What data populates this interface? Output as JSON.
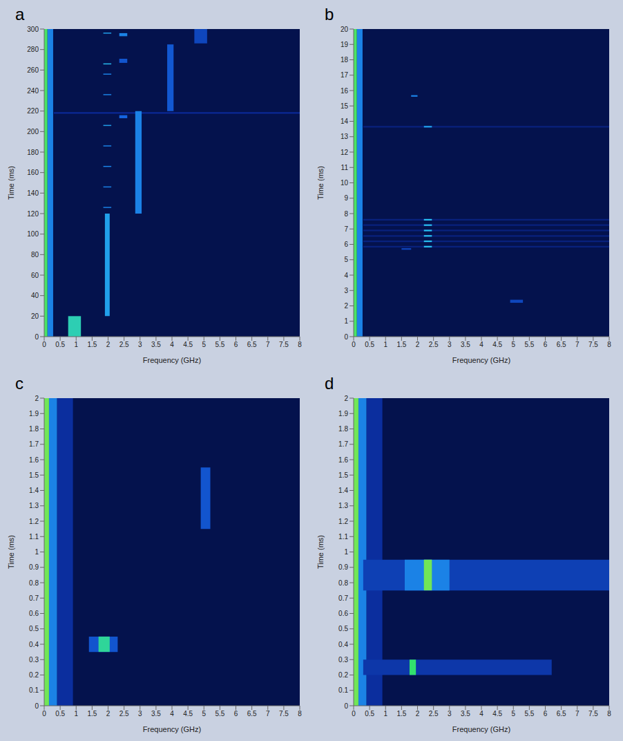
{
  "chart_data": [
    {
      "type": "heatmap",
      "panel": "a",
      "x_label": "Frequency (GHz)",
      "y_label": "Time (ms)",
      "grid": false,
      "xlim": [
        0,
        8
      ],
      "ylim": [
        0,
        300
      ],
      "xticks": [
        0,
        0.5,
        1,
        1.5,
        2,
        2.5,
        3,
        3.5,
        4,
        4.5,
        5,
        5.5,
        6,
        6.5,
        7,
        7.5,
        8
      ],
      "yticks": [
        0,
        20,
        40,
        60,
        80,
        100,
        120,
        140,
        160,
        180,
        200,
        220,
        240,
        260,
        280,
        300
      ],
      "cells": [
        {
          "x": [
            0.1,
            0.28
          ],
          "y": [
            0,
            300
          ],
          "value": 0.45
        },
        {
          "x": [
            0,
            0.1
          ],
          "y": [
            0,
            300
          ],
          "value": 0.72
        },
        {
          "x": [
            0.3,
            8
          ],
          "y": [
            217.5,
            219
          ],
          "value": 0.2
        },
        {
          "x": [
            0.75,
            1.15
          ],
          "y": [
            0,
            20
          ],
          "value": 0.62
        },
        {
          "x": [
            1.9,
            2.05
          ],
          "y": [
            20,
            120
          ],
          "value": 0.5
        },
        {
          "x": [
            2.85,
            3.05
          ],
          "y": [
            120,
            220
          ],
          "value": 0.45
        },
        {
          "x": [
            3.85,
            4.05
          ],
          "y": [
            220,
            285
          ],
          "value": 0.36
        },
        {
          "x": [
            4.7,
            5.1
          ],
          "y": [
            286,
            300
          ],
          "value": 0.3
        },
        {
          "x": [
            1.85,
            2.1
          ],
          "y": [
            125.5,
            126.5
          ],
          "value": 0.45
        },
        {
          "x": [
            1.85,
            2.1
          ],
          "y": [
            145.5,
            146.5
          ],
          "value": 0.45
        },
        {
          "x": [
            1.85,
            2.1
          ],
          "y": [
            165.5,
            166.5
          ],
          "value": 0.45
        },
        {
          "x": [
            1.85,
            2.1
          ],
          "y": [
            185.5,
            186.5
          ],
          "value": 0.45
        },
        {
          "x": [
            1.85,
            2.1
          ],
          "y": [
            205.5,
            206.5
          ],
          "value": 0.5
        },
        {
          "x": [
            1.85,
            2.1
          ],
          "y": [
            235.5,
            236.5
          ],
          "value": 0.45
        },
        {
          "x": [
            1.85,
            2.1
          ],
          "y": [
            255.5,
            256.5
          ],
          "value": 0.45
        },
        {
          "x": [
            1.85,
            2.1
          ],
          "y": [
            265.5,
            266.5
          ],
          "value": 0.55
        },
        {
          "x": [
            1.85,
            2.1
          ],
          "y": [
            295.5,
            296.5
          ],
          "value": 0.5
        },
        {
          "x": [
            2.35,
            2.6
          ],
          "y": [
            213,
            216
          ],
          "value": 0.4
        },
        {
          "x": [
            2.35,
            2.6
          ],
          "y": [
            267,
            271
          ],
          "value": 0.35
        },
        {
          "x": [
            2.35,
            2.6
          ],
          "y": [
            293,
            296
          ],
          "value": 0.45
        }
      ]
    },
    {
      "type": "heatmap",
      "panel": "b",
      "x_label": "Frequency (GHz)",
      "y_label": "Time (ms)",
      "grid": false,
      "xlim": [
        0,
        8
      ],
      "ylim": [
        0,
        20
      ],
      "xticks": [
        0,
        0.5,
        1,
        1.5,
        2,
        2.5,
        3,
        3.5,
        4,
        4.5,
        5,
        5.5,
        6,
        6.5,
        7,
        7.5,
        8
      ],
      "yticks": [
        0,
        1,
        2,
        3,
        4,
        5,
        6,
        7,
        8,
        9,
        10,
        11,
        12,
        13,
        14,
        15,
        16,
        17,
        18,
        19,
        20
      ],
      "cells": [
        {
          "x": [
            0.1,
            0.28
          ],
          "y": [
            0,
            20
          ],
          "value": 0.45
        },
        {
          "x": [
            0,
            0.1
          ],
          "y": [
            0,
            20
          ],
          "value": 0.72
        },
        {
          "x": [
            4.9,
            5.3
          ],
          "y": [
            2.2,
            2.4
          ],
          "value": 0.3
        },
        {
          "x": [
            1.5,
            1.8
          ],
          "y": [
            5.65,
            5.75
          ],
          "value": 0.3
        },
        {
          "x": [
            0.3,
            8
          ],
          "y": [
            5.8,
            5.9
          ],
          "value": 0.15
        },
        {
          "x": [
            0.3,
            8
          ],
          "y": [
            6.15,
            6.25
          ],
          "value": 0.15
        },
        {
          "x": [
            0.3,
            8
          ],
          "y": [
            6.5,
            6.6
          ],
          "value": 0.15
        },
        {
          "x": [
            0.3,
            8
          ],
          "y": [
            6.85,
            6.95
          ],
          "value": 0.15
        },
        {
          "x": [
            0.3,
            8
          ],
          "y": [
            7.2,
            7.3
          ],
          "value": 0.15
        },
        {
          "x": [
            0.3,
            8
          ],
          "y": [
            7.55,
            7.65
          ],
          "value": 0.15
        },
        {
          "x": [
            2.2,
            2.45
          ],
          "y": [
            5.8,
            5.9
          ],
          "value": 0.55
        },
        {
          "x": [
            2.2,
            2.45
          ],
          "y": [
            6.15,
            6.25
          ],
          "value": 0.55
        },
        {
          "x": [
            2.2,
            2.45
          ],
          "y": [
            6.5,
            6.6
          ],
          "value": 0.55
        },
        {
          "x": [
            2.2,
            2.45
          ],
          "y": [
            6.85,
            6.95
          ],
          "value": 0.55
        },
        {
          "x": [
            2.2,
            2.45
          ],
          "y": [
            7.2,
            7.3
          ],
          "value": 0.55
        },
        {
          "x": [
            2.2,
            2.45
          ],
          "y": [
            7.55,
            7.65
          ],
          "value": 0.55
        },
        {
          "x": [
            0.3,
            8
          ],
          "y": [
            13.6,
            13.7
          ],
          "value": 0.15
        },
        {
          "x": [
            2.2,
            2.45
          ],
          "y": [
            13.6,
            13.7
          ],
          "value": 0.5
        },
        {
          "x": [
            1.8,
            2.0
          ],
          "y": [
            15.6,
            15.7
          ],
          "value": 0.45
        }
      ]
    },
    {
      "type": "heatmap",
      "panel": "c",
      "x_label": "Frequency (GHz)",
      "y_label": "Time (ms)",
      "grid": false,
      "xlim": [
        0,
        8
      ],
      "ylim": [
        0,
        2
      ],
      "xticks": [
        0,
        0.5,
        1,
        1.5,
        2,
        2.5,
        3,
        3.5,
        4,
        4.5,
        5,
        5.5,
        6,
        6.5,
        7,
        7.5,
        8
      ],
      "yticks": [
        0,
        0.1,
        0.2,
        0.3,
        0.4,
        0.5,
        0.6,
        0.7,
        0.8,
        0.9,
        1,
        1.1,
        1.2,
        1.3,
        1.4,
        1.5,
        1.6,
        1.7,
        1.8,
        1.9,
        2
      ],
      "cells": [
        {
          "x": [
            0.4,
            0.9
          ],
          "y": [
            0,
            2
          ],
          "value": 0.22
        },
        {
          "x": [
            0.15,
            0.4
          ],
          "y": [
            0,
            2
          ],
          "value": 0.45
        },
        {
          "x": [
            0,
            0.15
          ],
          "y": [
            0,
            2
          ],
          "value": 0.75
        },
        {
          "x": [
            1.4,
            2.3
          ],
          "y": [
            0.35,
            0.45
          ],
          "value": 0.35
        },
        {
          "x": [
            1.7,
            2.05
          ],
          "y": [
            0.35,
            0.45
          ],
          "value": 0.65
        },
        {
          "x": [
            4.9,
            5.2
          ],
          "y": [
            1.15,
            1.55
          ],
          "value": 0.35
        }
      ]
    },
    {
      "type": "heatmap",
      "panel": "d",
      "x_label": "Frequency (GHz)",
      "y_label": "Time (ms)",
      "grid": false,
      "xlim": [
        0,
        8
      ],
      "ylim": [
        0,
        2
      ],
      "xticks": [
        0,
        0.5,
        1,
        1.5,
        2,
        2.5,
        3,
        3.5,
        4,
        4.5,
        5,
        5.5,
        6,
        6.5,
        7,
        7.5,
        8
      ],
      "yticks": [
        0,
        0.1,
        0.2,
        0.3,
        0.4,
        0.5,
        0.6,
        0.7,
        0.8,
        0.9,
        1,
        1.1,
        1.2,
        1.3,
        1.4,
        1.5,
        1.6,
        1.7,
        1.8,
        1.9,
        2
      ],
      "cells": [
        {
          "x": [
            0.4,
            0.9
          ],
          "y": [
            0,
            2
          ],
          "value": 0.22
        },
        {
          "x": [
            0.15,
            0.4
          ],
          "y": [
            0,
            2
          ],
          "value": 0.45
        },
        {
          "x": [
            0,
            0.15
          ],
          "y": [
            0,
            2
          ],
          "value": 0.75
        },
        {
          "x": [
            0.3,
            6.2
          ],
          "y": [
            0.2,
            0.3
          ],
          "value": 0.25
        },
        {
          "x": [
            1.75,
            1.95
          ],
          "y": [
            0.2,
            0.3
          ],
          "value": 0.7
        },
        {
          "x": [
            0.3,
            8
          ],
          "y": [
            0.75,
            0.95
          ],
          "value": 0.28
        },
        {
          "x": [
            1.6,
            3.0
          ],
          "y": [
            0.75,
            0.95
          ],
          "value": 0.45
        },
        {
          "x": [
            2.2,
            2.45
          ],
          "y": [
            0.75,
            0.95
          ],
          "value": 0.75
        }
      ]
    }
  ]
}
